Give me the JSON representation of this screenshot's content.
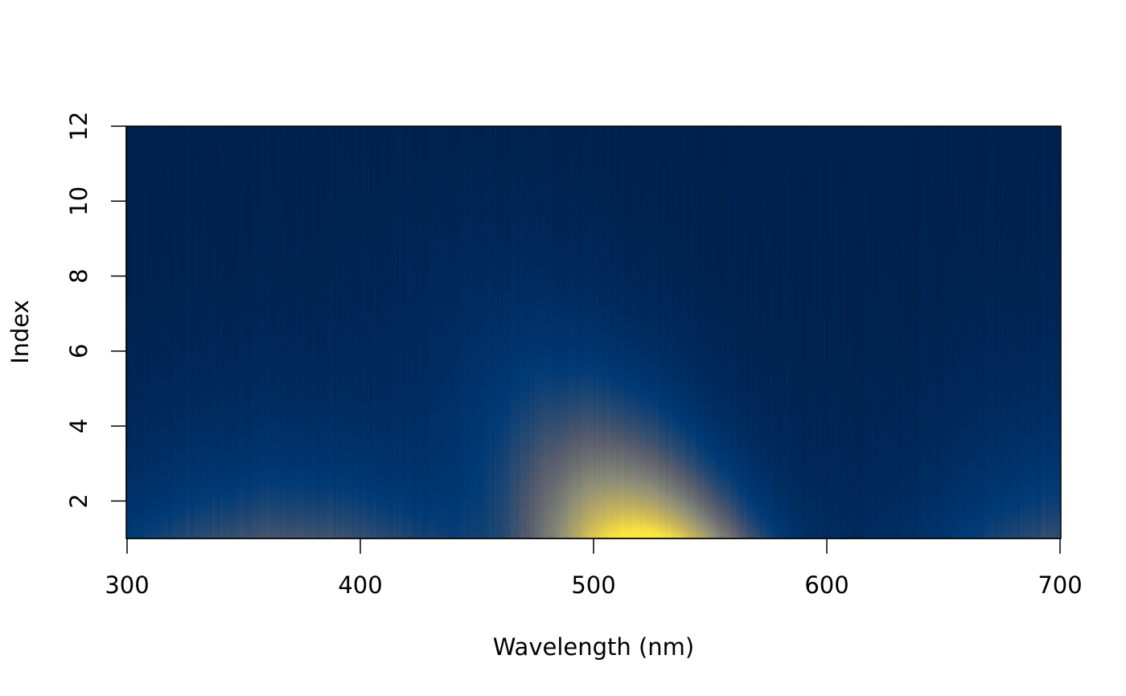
{
  "chart_data": {
    "type": "heatmap",
    "title": "",
    "xlabel": "Wavelength (nm)",
    "ylabel": "Index",
    "xlim": [
      300,
      700
    ],
    "ylim": [
      1,
      12
    ],
    "x_ticks": [
      300,
      400,
      500,
      600,
      700
    ],
    "y_ticks": [
      2,
      4,
      6,
      8,
      10,
      12
    ],
    "grid": false,
    "legend": "none",
    "colormap": [
      "#00204c",
      "#003a76",
      "#575c6d",
      "#8c8c78",
      "#c7b45d",
      "#fde53e"
    ],
    "description_values": {
      "peaks": [
        {
          "wavelength_nm": 520,
          "index": 1,
          "intensity": 1.0
        },
        {
          "wavelength_nm": 370,
          "index": 1,
          "intensity": 0.28
        },
        {
          "wavelength_nm": 700,
          "index": 1,
          "intensity": 0.25
        }
      ]
    }
  }
}
